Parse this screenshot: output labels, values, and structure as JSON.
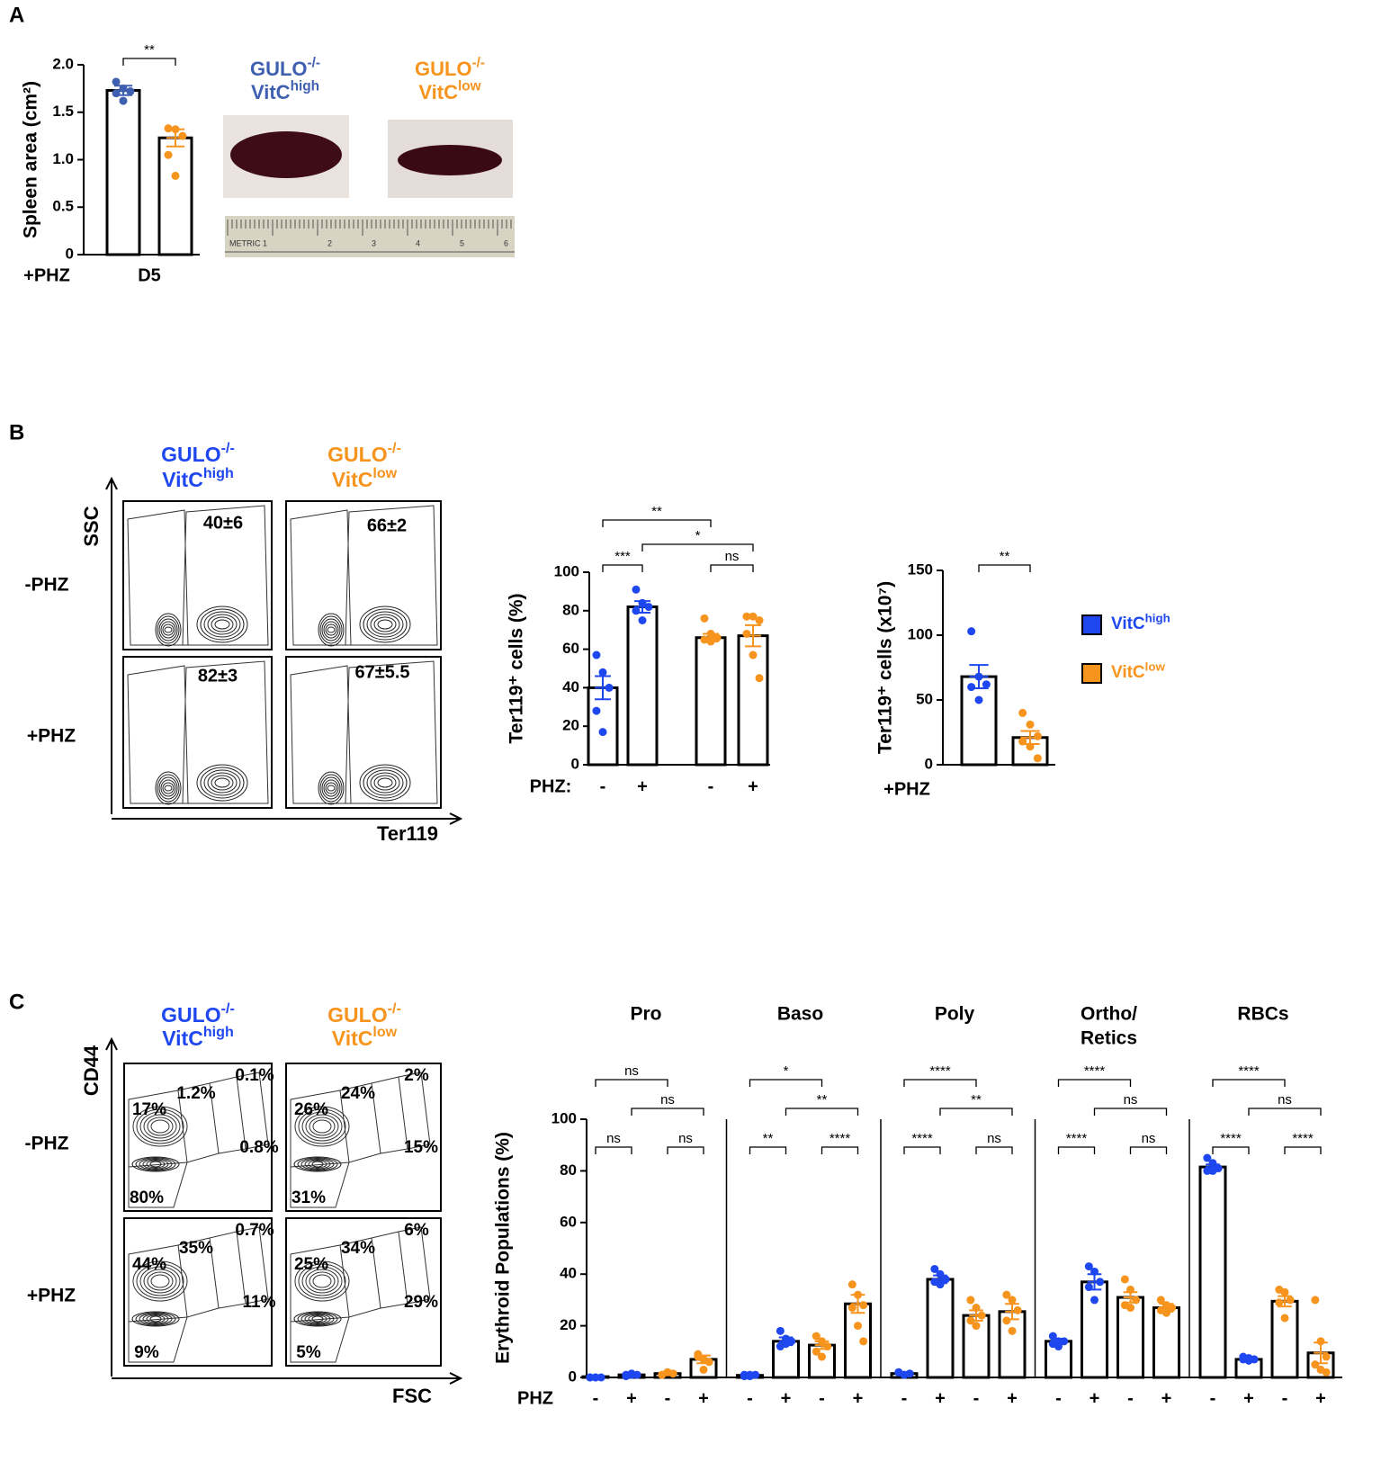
{
  "panel_labels": [
    "A",
    "B",
    "C"
  ],
  "panelA_photo": {
    "genotypes": [
      {
        "base": "GULO",
        "sup": "-/-"
      },
      {
        "base": "GULO",
        "sup": "-/-"
      }
    ],
    "diets": [
      {
        "base": "VitC",
        "sup": "high"
      },
      {
        "base": "VitC",
        "sup": "low"
      }
    ],
    "ruler": [
      "METRIC 1",
      "2",
      "3",
      "4",
      "5",
      "6"
    ]
  },
  "panelB_flow": {
    "genotypes": [
      {
        "base": "GULO",
        "sup": "-/-"
      },
      {
        "base": "GULO",
        "sup": "-/-"
      }
    ],
    "diets": [
      {
        "base": "VitC",
        "sup": "high"
      },
      {
        "base": "VitC",
        "sup": "low"
      }
    ],
    "y_axis": "SSC",
    "x_axis": "Ter119",
    "rows": [
      "-PHZ",
      "+PHZ"
    ],
    "gates": [
      "40±6",
      "66±2",
      "82±3",
      "67±5.5"
    ]
  },
  "legend": [
    {
      "base": "VitC",
      "sup": "high",
      "color": "#1f47f0"
    },
    {
      "base": "VitC",
      "sup": "low",
      "color": "#f7941d"
    }
  ],
  "panelC_flow": {
    "genotypes": [
      {
        "base": "GULO",
        "sup": "-/-"
      },
      {
        "base": "GULO",
        "sup": "-/-"
      }
    ],
    "diets": [
      {
        "base": "VitC",
        "sup": "high"
      },
      {
        "base": "VitC",
        "sup": "low"
      }
    ],
    "y_axis": "CD44",
    "x_axis": "FSC",
    "rows": [
      "-PHZ",
      "+PHZ"
    ],
    "gates": [
      [
        "17%",
        "1.2%",
        "0.1%",
        "0.8%",
        "80%"
      ],
      [
        "26%",
        "24%",
        "2%",
        "15%",
        "31%"
      ],
      [
        "44%",
        "35%",
        "0.7%",
        "11%",
        "9%"
      ],
      [
        "25%",
        "34%",
        "6%",
        "29%",
        "5%"
      ]
    ]
  },
  "chart_data": [
    {
      "type": "bar",
      "ylabel": "Spleen area (cm²)",
      "xlabel": "D5",
      "condition_label": "+PHZ",
      "categories": [
        null,
        null
      ],
      "values": [
        1.73,
        1.23
      ],
      "errors": [
        0.05,
        0.09
      ],
      "colors": [
        "#3f5fb0",
        "#f7941d"
      ],
      "points": [
        [
          1.82,
          1.75,
          1.72,
          1.7,
          1.62
        ],
        [
          1.33,
          1.32,
          1.25,
          1.05,
          0.83
        ]
      ],
      "ylim": [
        0,
        2
      ],
      "yticks": [
        0,
        0.5,
        {
          "value": 1,
          "label": "1.0"
        },
        1.5,
        {
          "value": 2,
          "label": "2.0"
        }
      ],
      "significance": [
        {
          "from": 0,
          "to": 1,
          "label": "**"
        }
      ]
    },
    {
      "type": "bar",
      "ylabel": "Ter119⁺ cells (%)",
      "xlabel": "PHZ:",
      "categories": [
        "-",
        "+",
        "-",
        "+"
      ],
      "values": [
        40,
        82,
        66,
        67
      ],
      "errors": [
        6,
        3,
        2,
        5.5
      ],
      "colors": [
        "#1f47f0",
        "#1f47f0",
        "#f7941d",
        "#f7941d"
      ],
      "points": [
        [
          57,
          48,
          40,
          28,
          17
        ],
        [
          91,
          84,
          82,
          80,
          75
        ],
        [
          76,
          68,
          66,
          65,
          64
        ],
        [
          77,
          77,
          75,
          68,
          57,
          45
        ]
      ],
      "ylim": [
        0,
        100
      ],
      "yticks": [
        0,
        20,
        40,
        60,
        80,
        100
      ],
      "significance": [
        {
          "from": 0,
          "to": 1,
          "label": "***"
        },
        {
          "from": 2,
          "to": 3,
          "label": "ns"
        },
        {
          "from": 0,
          "to": 2,
          "label": "**"
        },
        {
          "from": 1,
          "to": 3,
          "label": "*"
        }
      ]
    },
    {
      "type": "bar",
      "ylabel": "Ter119⁺ cells (x10⁷)",
      "condition_label": "+PHZ",
      "categories": [
        null,
        null
      ],
      "values": [
        68,
        21
      ],
      "errors": [
        9,
        5
      ],
      "colors": [
        "#1f47f0",
        "#f7941d"
      ],
      "points": [
        [
          103,
          68,
          62,
          60,
          50
        ],
        [
          40,
          31,
          22,
          18,
          14,
          5
        ]
      ],
      "ylim": [
        0,
        150
      ],
      "yticks": [
        0,
        50,
        100,
        150
      ],
      "significance": [
        {
          "from": 0,
          "to": 1,
          "label": "**"
        }
      ]
    },
    {
      "type": "grouped_bar",
      "ylabel": "Erythroid Populations (%)",
      "xlabel": "PHZ",
      "groups": [
        [
          "Pro"
        ],
        [
          "Baso"
        ],
        [
          "Poly"
        ],
        [
          "Ortho/",
          "Retics"
        ],
        [
          "RBCs"
        ]
      ],
      "categories": [
        "-",
        "+",
        "-",
        "+"
      ],
      "colors": [
        "#1f47f0",
        "#1f47f0",
        "#f7941d",
        "#f7941d"
      ],
      "values": [
        [
          0.3,
          1,
          1.5,
          7
        ],
        [
          0.8,
          14,
          12.5,
          28.5
        ],
        [
          1.5,
          38,
          24,
          25.5
        ],
        [
          14,
          37,
          31,
          27
        ],
        [
          81.5,
          7,
          29.5,
          9.5
        ]
      ],
      "errors": [
        [
          0.2,
          0.3,
          0.5,
          1.5
        ],
        [
          0.2,
          1.5,
          1.5,
          3.5
        ],
        [
          0.5,
          1.5,
          2,
          3
        ],
        [
          1,
          3,
          2,
          1.5
        ],
        [
          1,
          0.5,
          2,
          4
        ]
      ],
      "points": [
        [
          [
            0,
            0,
            0,
            0,
            0
          ],
          [
            1,
            1.5,
            1,
            0.5,
            1
          ],
          [
            1,
            2,
            1.5,
            1,
            2
          ],
          [
            9,
            7,
            6,
            8,
            3
          ]
        ],
        [
          [
            1,
            0.5,
            1,
            0.5,
            1
          ],
          [
            18,
            15,
            14,
            12,
            13
          ],
          [
            16,
            14,
            12,
            10,
            8
          ],
          [
            36,
            32,
            28,
            27,
            20,
            14
          ]
        ],
        [
          [
            2,
            1,
            1.5,
            2,
            1
          ],
          [
            42,
            40,
            38,
            37,
            36
          ],
          [
            30,
            27,
            24,
            22,
            20
          ],
          [
            32,
            30,
            26,
            22,
            18
          ]
        ],
        [
          [
            16,
            14,
            14,
            13,
            12
          ],
          [
            43,
            41,
            37,
            35,
            30
          ],
          [
            38,
            34,
            30,
            28,
            27
          ],
          [
            30,
            28,
            27,
            26,
            25
          ]
        ],
        [
          [
            85,
            83,
            81,
            80,
            80
          ],
          [
            8,
            7.5,
            7,
            7,
            6.5
          ],
          [
            34,
            33,
            30,
            29,
            23
          ],
          [
            30,
            14,
            8,
            5,
            3,
            2
          ]
        ]
      ],
      "ylim": [
        0,
        100
      ],
      "yticks": [
        0,
        20,
        40,
        60,
        80,
        100
      ],
      "significance": [
        [
          {
            "from": 0,
            "to": 1,
            "label": "ns"
          },
          {
            "from": 2,
            "to": 3,
            "label": "ns"
          },
          {
            "from": 0,
            "to": 2,
            "label": "ns"
          },
          {
            "from": 1,
            "to": 3,
            "label": "ns"
          }
        ],
        [
          {
            "from": 0,
            "to": 1,
            "label": "**"
          },
          {
            "from": 2,
            "to": 3,
            "label": "****"
          },
          {
            "from": 0,
            "to": 2,
            "label": "*"
          },
          {
            "from": 1,
            "to": 3,
            "label": "**"
          }
        ],
        [
          {
            "from": 0,
            "to": 1,
            "label": "****"
          },
          {
            "from": 2,
            "to": 3,
            "label": "ns"
          },
          {
            "from": 0,
            "to": 2,
            "label": "****"
          },
          {
            "from": 1,
            "to": 3,
            "label": "**"
          }
        ],
        [
          {
            "from": 0,
            "to": 1,
            "label": "****"
          },
          {
            "from": 2,
            "to": 3,
            "label": "ns"
          },
          {
            "from": 0,
            "to": 2,
            "label": "****"
          },
          {
            "from": 1,
            "to": 3,
            "label": "ns"
          }
        ],
        [
          {
            "from": 0,
            "to": 1,
            "label": "****"
          },
          {
            "from": 2,
            "to": 3,
            "label": "****"
          },
          {
            "from": 0,
            "to": 2,
            "label": "****"
          },
          {
            "from": 1,
            "to": 3,
            "label": "ns"
          }
        ]
      ]
    }
  ]
}
